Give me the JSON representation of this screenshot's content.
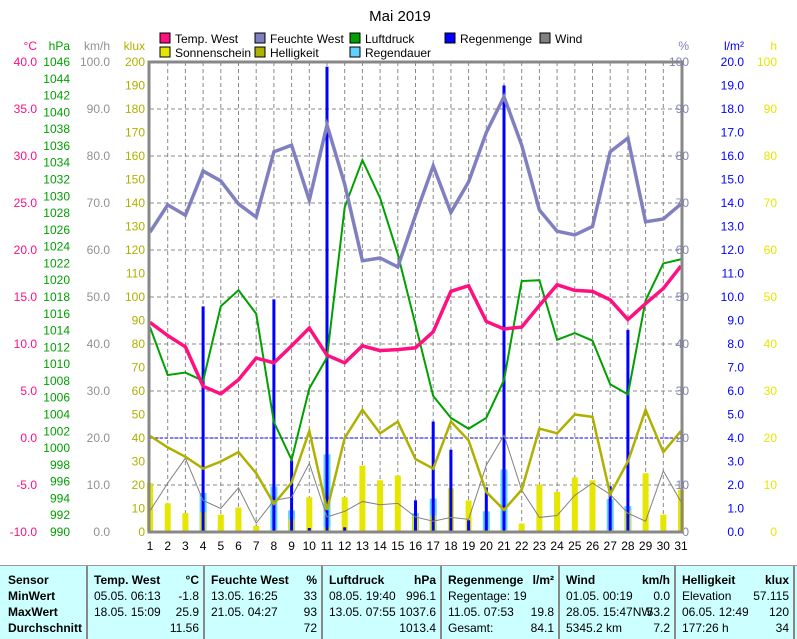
{
  "chart_data": {
    "type": "line",
    "title": "Mai 2019",
    "x": [
      1,
      2,
      3,
      4,
      5,
      6,
      7,
      8,
      9,
      10,
      11,
      12,
      13,
      14,
      15,
      16,
      17,
      18,
      19,
      20,
      21,
      22,
      23,
      24,
      25,
      26,
      27,
      28,
      29,
      30,
      31
    ],
    "xlabel": "",
    "legend": [
      {
        "name": "Temp. West",
        "color": "#ff1080"
      },
      {
        "name": "Feuchte West",
        "color": "#8080c0"
      },
      {
        "name": "Luftdruck",
        "color": "#00a000"
      },
      {
        "name": "Regenmenge",
        "color": "#0000ff"
      },
      {
        "name": "Wind",
        "color": "#808080"
      },
      {
        "name": "Sonnenschein",
        "color": "#e6e600"
      },
      {
        "name": "Helligkeit",
        "color": "#b0b000"
      },
      {
        "name": "Regendauer",
        "color": "#60d0ff"
      }
    ],
    "legend_placement": "top",
    "axes": {
      "temp": {
        "unit": "°C",
        "min": -10,
        "max": 40,
        "step": 5,
        "color": "#ff1080"
      },
      "pressure": {
        "unit": "hPa",
        "min": 990,
        "max": 1046,
        "step": 2,
        "color": "#00a000"
      },
      "wind": {
        "unit": "km/h",
        "min": 0,
        "max": 100,
        "step": 10,
        "color": "#909090"
      },
      "brightness": {
        "unit": "klux",
        "min": 0,
        "max": 200,
        "step": 10,
        "color": "#b0b000"
      },
      "humidity": {
        "unit": "%",
        "min": 0,
        "max": 100,
        "step": 10,
        "color": "#8080c0"
      },
      "rain": {
        "unit": "l/m²",
        "min": 0,
        "max": 20,
        "step": 1,
        "color": "#0000ff"
      },
      "sunshine": {
        "unit": "h",
        "min": 0,
        "max": 100,
        "step": 10,
        "color": "#e6e600"
      }
    },
    "grid": true,
    "series": [
      {
        "name": "Temp. West",
        "axis": "temp",
        "kind": "line",
        "values": [
          12.3,
          10.9,
          9.7,
          5.5,
          4.7,
          6.2,
          8.5,
          8.0,
          9.8,
          11.7,
          8.8,
          8.0,
          9.8,
          9.3,
          9.4,
          9.6,
          11.3,
          15.6,
          16.2,
          12.4,
          11.6,
          11.8,
          14.1,
          16.3,
          15.7,
          15.6,
          14.7,
          12.6,
          14.3,
          15.9,
          18.3
        ]
      },
      {
        "name": "Feuchte West",
        "axis": "humidity",
        "kind": "line",
        "values": [
          63.8,
          69.6,
          67.4,
          76.8,
          74.7,
          69.8,
          67,
          80.9,
          82.3,
          70.6,
          86.6,
          74,
          57.7,
          58.3,
          56.4,
          67.4,
          77.9,
          68,
          74.5,
          85,
          92.6,
          82.3,
          68.5,
          64,
          63.2,
          65,
          80.9,
          83.8,
          66,
          66.6,
          69.8
        ]
      },
      {
        "name": "Luftdruck",
        "axis": "pressure",
        "kind": "line",
        "values": [
          1014.4,
          1008.7,
          1009,
          1008,
          1016.9,
          1018.8,
          1016,
          1003.1,
          998.6,
          1007.1,
          1010.8,
          1028.7,
          1034.3,
          1029.8,
          1023.1,
          1014.7,
          1006.2,
          1003.6,
          1002.3,
          1003.6,
          1008.1,
          1019.9,
          1020,
          1012.9,
          1013.7,
          1012.8,
          1007.6,
          1006.4,
          1017.6,
          1022,
          1022.5
        ]
      },
      {
        "name": "Helligkeit",
        "axis": "brightness",
        "kind": "line",
        "values": [
          40.9,
          36,
          32,
          27,
          30,
          34,
          25,
          12,
          21,
          43,
          9.4,
          40,
          52,
          42,
          47,
          31,
          27,
          47,
          39,
          17,
          9.4,
          18,
          44,
          42,
          50,
          49,
          16,
          30,
          52,
          34,
          43
        ]
      },
      {
        "name": "Wind",
        "axis": "wind",
        "kind": "line",
        "values": [
          4.5,
          10.4,
          15.7,
          6.7,
          5,
          9.4,
          1.9,
          6.7,
          7.4,
          14.6,
          3.2,
          4.4,
          6.5,
          5.8,
          6.1,
          3.2,
          2.3,
          3.1,
          2.7,
          14.2,
          20.6,
          8.9,
          3.1,
          3.5,
          7.8,
          10.4,
          8,
          4,
          2.3,
          13,
          6.4
        ]
      },
      {
        "name": "Sonnenschein",
        "axis": "sunshine",
        "kind": "bar",
        "values": [
          10.4,
          6.1,
          4,
          4.2,
          3.7,
          5.2,
          1.3,
          0.5,
          2.7,
          7.4,
          1,
          7.4,
          14.1,
          11,
          12,
          3.5,
          3.5,
          9.3,
          6.7,
          0.5,
          0.5,
          1.8,
          10.1,
          8.5,
          11.6,
          11,
          0.5,
          4.6,
          12.5,
          3.7,
          9
        ]
      },
      {
        "name": "Regendauer",
        "axis": "sunshine",
        "kind": "bar",
        "values": [
          0,
          0,
          0,
          8.3,
          0,
          0,
          0,
          9.7,
          4.6,
          0,
          16.5,
          0,
          0,
          0,
          0,
          4,
          7.1,
          0,
          0,
          4.4,
          13.3,
          0,
          0,
          0,
          0,
          0,
          7,
          5.5,
          0,
          0,
          0
        ]
      },
      {
        "name": "Regenmenge",
        "axis": "rain",
        "kind": "bar",
        "values": [
          0,
          0,
          0,
          9.6,
          0,
          0,
          0,
          9.9,
          3.05,
          0.17,
          19.8,
          0.2,
          0,
          0,
          0,
          1.35,
          4.7,
          3.5,
          0.5,
          1.9,
          19.0,
          0,
          0,
          0,
          0,
          0,
          1.95,
          8.6,
          0,
          0,
          0
        ]
      }
    ],
    "reference_line": {
      "axis": "rain",
      "value": 4.0,
      "color": "#0000ff"
    }
  },
  "table": {
    "sensor": {
      "header": "Sensor",
      "rows": [
        "MinWert",
        "MaxWert",
        "Durchschnitt"
      ]
    },
    "temp": {
      "header": "Temp. West",
      "unit": "°C",
      "min_time": "05.05.  06:13",
      "min": "-1.8",
      "max_time": "18.05.  15:09",
      "max": "25.9",
      "avg": "11.56"
    },
    "humidity": {
      "header": "Feuchte West",
      "unit": "%",
      "min_time": "13.05.  16:25",
      "min": "33",
      "max_time": "21.05.  04:27",
      "max": "93",
      "avg": "72"
    },
    "pressure": {
      "header": "Luftdruck",
      "unit": "hPa",
      "min_time": "08.05.  19:40",
      "min": "996.1",
      "max_time": "13.05.  07:55",
      "max": "1037.6",
      "avg": "1013.4"
    },
    "rain": {
      "header": "Regenmenge",
      "unit": "l/m²",
      "row1": "Regentage: 19",
      "max_time": "11.05.  07:53",
      "max": "19.8",
      "total_label": "Gesamt:",
      "total": "84.1"
    },
    "wind": {
      "header": "Wind",
      "unit": "km/h",
      "min_time": "01.05.  00:19",
      "min": "0.0",
      "max_time": "28.05.  15:47NW",
      "max": "53.2",
      "distance": "5345.2 km",
      "avg": "7.2"
    },
    "brightness": {
      "header": "Helligkeit",
      "unit": "klux",
      "elev_label": "Elevation",
      "elev": "57.115",
      "max_time": "06.05.  12:49",
      "max": "120",
      "hours": "177:26 h",
      "avg": "34"
    }
  }
}
